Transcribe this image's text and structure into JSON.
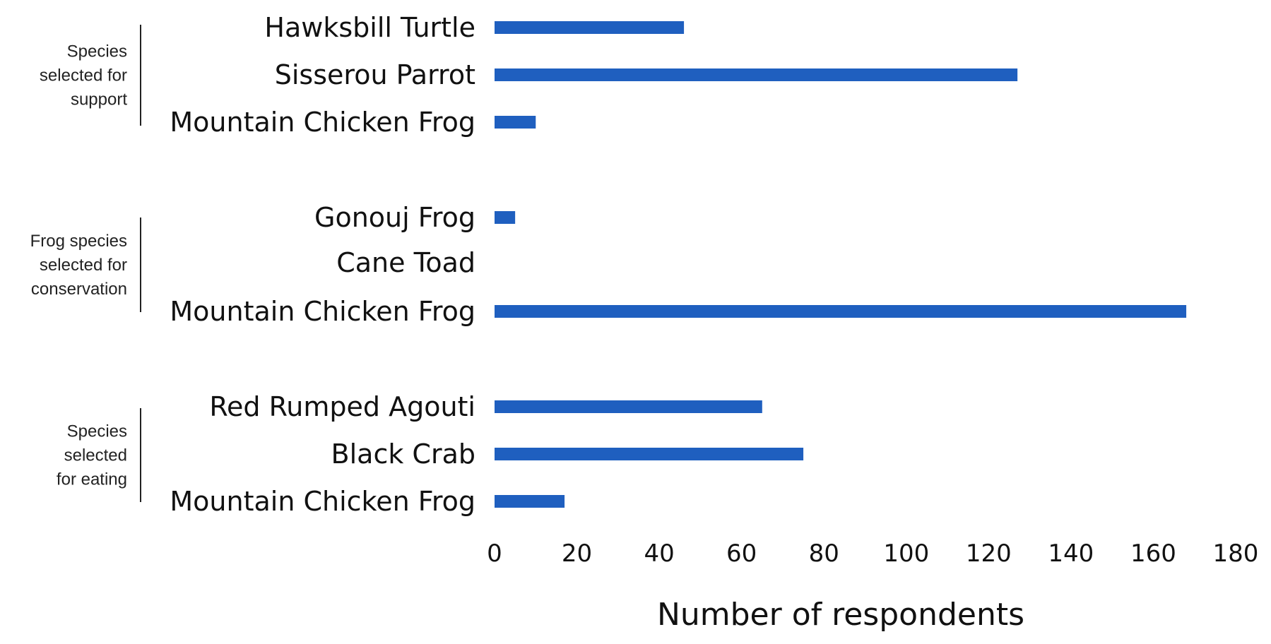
{
  "chart_data": {
    "type": "bar",
    "orientation": "horizontal",
    "categories": [
      "Hawksbill Turtle",
      "Sisserou Parrot",
      "Mountain Chicken Frog",
      "Gonouj Frog",
      "Cane Toad",
      "Mountain Chicken Frog",
      "Red Rumped Agouti",
      "Black Crab",
      "Mountain Chicken Frog"
    ],
    "values": [
      46,
      127,
      10,
      5,
      0,
      168,
      65,
      75,
      17
    ],
    "groups": [
      {
        "label": [
          "Species",
          "selected for",
          "support"
        ],
        "members": [
          0,
          1,
          2
        ]
      },
      {
        "label": [
          "Frog species",
          "selected for",
          "conservation"
        ],
        "members": [
          3,
          4,
          5
        ]
      },
      {
        "label": [
          "Species",
          "selected",
          "for eating"
        ],
        "members": [
          6,
          7,
          8
        ]
      }
    ],
    "xlabel": "Number of respondents",
    "xlim": [
      0,
      180
    ],
    "xticks": [
      0,
      20,
      40,
      60,
      80,
      100,
      120,
      140,
      160,
      180
    ],
    "bar_color": "#1f5fbf",
    "grid": false,
    "legend": "none"
  }
}
